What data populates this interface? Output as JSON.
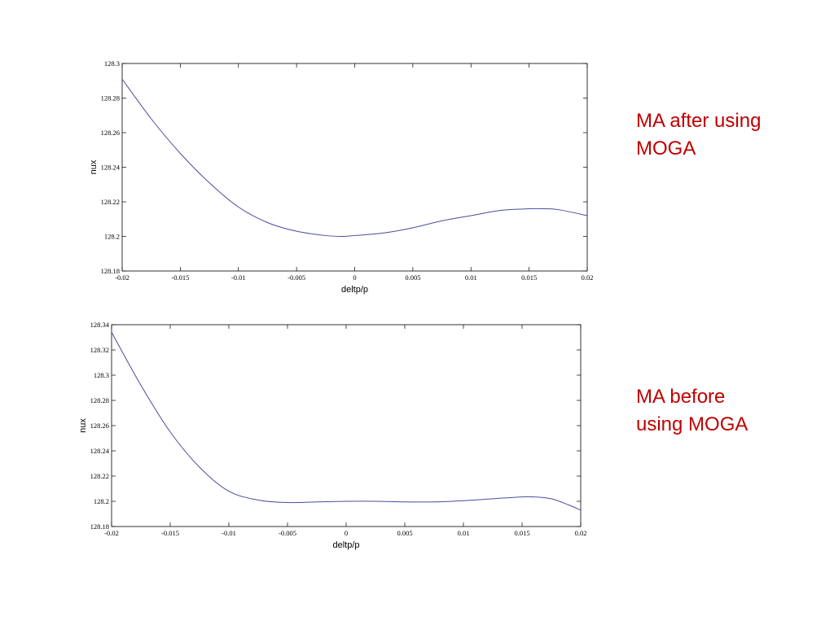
{
  "chart_data": [
    {
      "type": "line",
      "title": "",
      "xlabel": "deltp/p",
      "ylabel": "nux",
      "xlim": [
        -0.02,
        0.02
      ],
      "ylim": [
        128.18,
        128.3
      ],
      "x_ticks": [
        -0.02,
        -0.015,
        -0.01,
        -0.005,
        0,
        0.005,
        0.01,
        0.015,
        0.02
      ],
      "x_tick_labels": [
        "-0.02",
        "-0.015",
        "-0.01",
        "-0.005",
        "0",
        "0.005",
        "0.01",
        "0.015",
        "0.02"
      ],
      "y_ticks": [
        128.18,
        128.2,
        128.22,
        128.24,
        128.26,
        128.28,
        128.3
      ],
      "y_tick_labels": [
        "128.18",
        "128.2",
        "128.22",
        "128.24",
        "128.26",
        "128.28",
        "128.3"
      ],
      "grid": false,
      "series": [
        {
          "color": "#4b4b9e",
          "x": [
            -0.02,
            -0.0175,
            -0.015,
            -0.0125,
            -0.01,
            -0.0075,
            -0.005,
            -0.0025,
            -0.001,
            0,
            0.0025,
            0.005,
            0.0075,
            0.01,
            0.0125,
            0.015,
            0.016,
            0.0175,
            0.02
          ],
          "y": [
            128.291,
            128.268,
            128.248,
            128.231,
            128.217,
            128.208,
            128.203,
            128.2005,
            128.2,
            128.2005,
            128.202,
            128.205,
            128.209,
            128.212,
            128.215,
            128.216,
            128.216,
            128.2155,
            128.212
          ]
        }
      ]
    },
    {
      "type": "line",
      "title": "",
      "xlabel": "deltp/p",
      "ylabel": "nux",
      "xlim": [
        -0.02,
        0.02
      ],
      "ylim": [
        128.18,
        128.34
      ],
      "x_ticks": [
        -0.02,
        -0.015,
        -0.01,
        -0.005,
        0,
        0.005,
        0.01,
        0.015,
        0.02
      ],
      "x_tick_labels": [
        "-0.02",
        "-0.015",
        "-0.01",
        "-0.005",
        "0",
        "0.005",
        "0.01",
        "0.015",
        "0.02"
      ],
      "y_ticks": [
        128.18,
        128.2,
        128.22,
        128.24,
        128.26,
        128.28,
        128.3,
        128.32,
        128.34
      ],
      "y_tick_labels": [
        "128.18",
        "128.2",
        "128.22",
        "128.24",
        "128.26",
        "128.28",
        "128.3",
        "128.32",
        "128.34"
      ],
      "grid": false,
      "series": [
        {
          "color": "#4b4b9e",
          "x": [
            -0.02,
            -0.0175,
            -0.015,
            -0.0125,
            -0.01,
            -0.0075,
            -0.005,
            -0.0025,
            0,
            0.0025,
            0.005,
            0.0075,
            0.01,
            0.0125,
            0.015,
            0.016,
            0.0175,
            0.019,
            0.02
          ],
          "y": [
            128.334,
            128.292,
            128.255,
            128.227,
            128.208,
            128.201,
            128.199,
            128.1995,
            128.2,
            128.2,
            128.1995,
            128.1995,
            128.2005,
            128.202,
            128.2035,
            128.2035,
            128.202,
            128.197,
            128.193
          ]
        }
      ]
    }
  ],
  "captions": {
    "top": {
      "line1": "MA after using",
      "line2": "MOGA"
    },
    "bottom": {
      "line1": "MA before",
      "line2": "using MOGA"
    }
  }
}
